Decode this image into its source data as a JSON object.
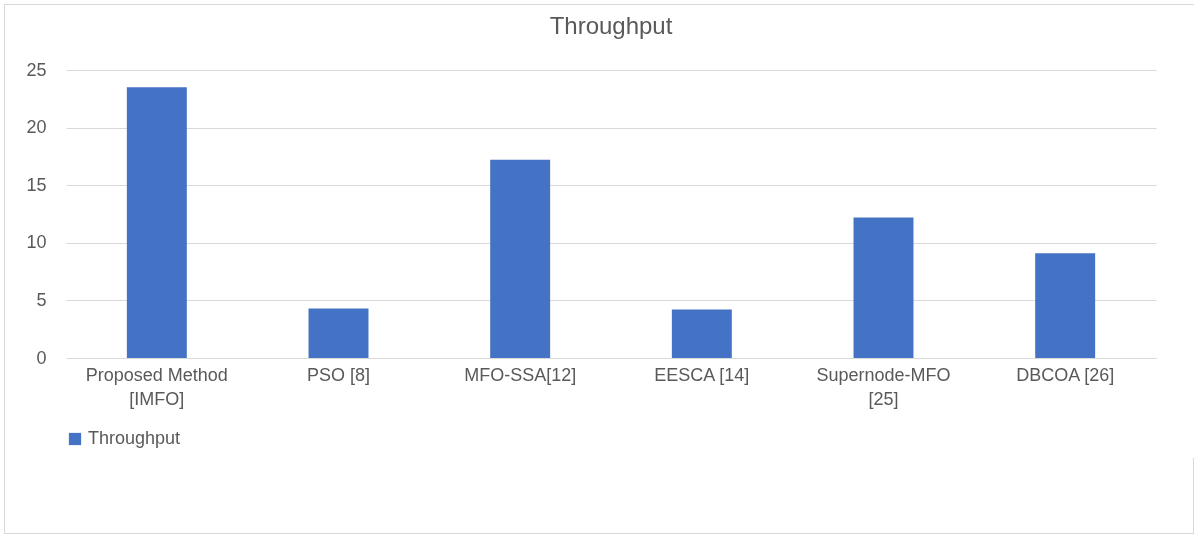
{
  "chart_data": {
    "type": "bar",
    "title": "Throughput",
    "categories": [
      "Proposed Method [IMFO]",
      "PSO [8]",
      "MFO-SSA[12]",
      "EESCA [14]",
      "Supernode-MFO [25]",
      "DBCOA [26]"
    ],
    "series": [
      {
        "name": "Throughput",
        "color": "#4472c4",
        "values": [
          23.5,
          4.3,
          17.2,
          4.2,
          12.2,
          9.1
        ]
      }
    ],
    "ylim": [
      0,
      25
    ],
    "yticks": [
      0,
      5,
      10,
      15,
      20,
      25
    ],
    "grid": "y",
    "legend": "bottom"
  }
}
